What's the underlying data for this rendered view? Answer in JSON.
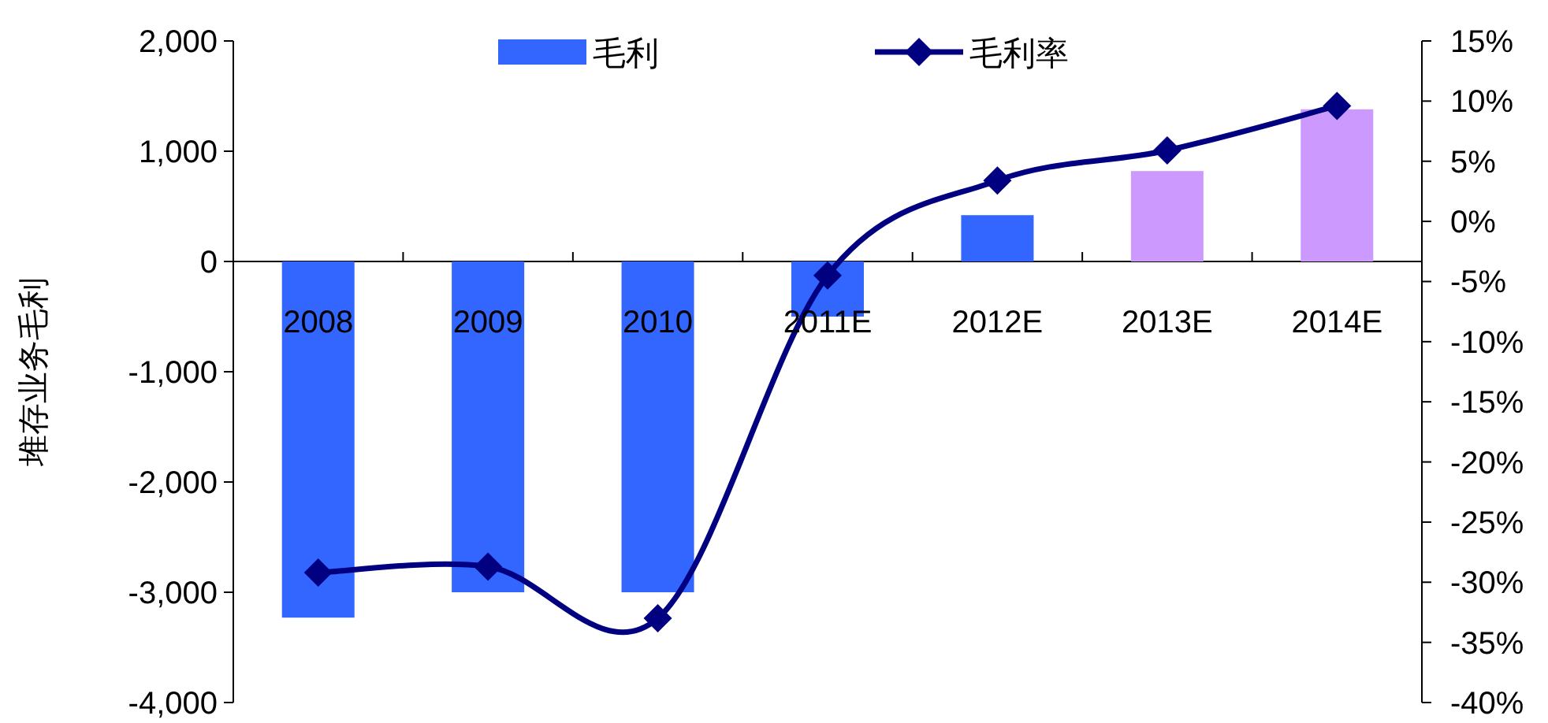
{
  "chart_data": {
    "type": "bar",
    "ylabel": "堆存业务毛利",
    "categories": [
      "2008",
      "2009",
      "2010",
      "2011E",
      "2012E",
      "2013E",
      "2014E"
    ],
    "series": [
      {
        "name": "毛利",
        "color": "#3366ff",
        "colors": [
          "#3366ff",
          "#3366ff",
          "#3366ff",
          "#3366ff",
          "#3366ff",
          "#cc99ff",
          "#cc99ff"
        ],
        "values": [
          -3230,
          -3000,
          -3000,
          -500,
          420,
          820,
          1380
        ]
      },
      {
        "name": "毛利率",
        "type": "line",
        "axis": "y2",
        "color": "#000080",
        "marker": "diamond",
        "values": [
          -29.2,
          -28.7,
          -33.0,
          -4.5,
          3.4,
          5.9,
          9.6
        ]
      }
    ],
    "ylim": [
      -4000,
      2000
    ],
    "yticks": [
      {
        "value": -4000,
        "label": "-4,000"
      },
      {
        "value": -3000,
        "label": "-3,000"
      },
      {
        "value": -2000,
        "label": "-2,000"
      },
      {
        "value": -1000,
        "label": "-1,000"
      },
      0,
      {
        "value": 1000,
        "label": "1,000"
      },
      {
        "value": 2000,
        "label": "2,000"
      }
    ],
    "y2lim": [
      -40,
      15
    ],
    "y2ticks": [
      {
        "value": -40,
        "label": "-40%"
      },
      {
        "value": -35,
        "label": "-35%"
      },
      {
        "value": -30,
        "label": "-30%"
      },
      {
        "value": -25,
        "label": "-25%"
      },
      {
        "value": -20,
        "label": "-20%"
      },
      {
        "value": -15,
        "label": "-15%"
      },
      {
        "value": -10,
        "label": "-10%"
      },
      {
        "value": -5,
        "label": "-5%"
      },
      {
        "value": 0,
        "label": "0%"
      },
      {
        "value": 5,
        "label": "5%"
      },
      {
        "value": 10,
        "label": "10%"
      },
      {
        "value": 15,
        "label": "15%"
      }
    ],
    "legend": "top"
  }
}
